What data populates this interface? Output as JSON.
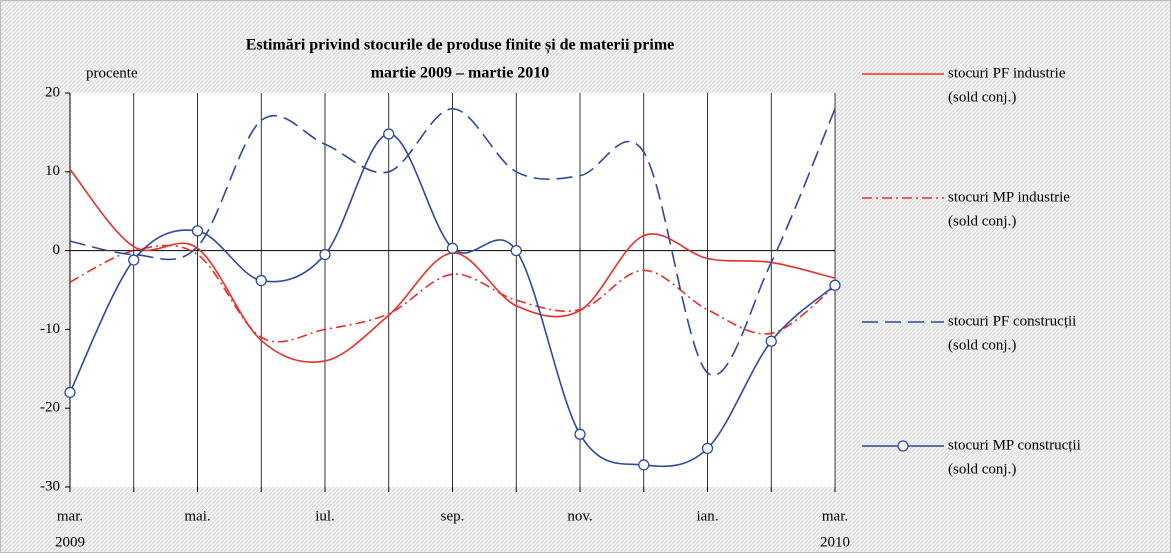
{
  "chart_data": {
    "type": "line",
    "title": "Estimări privind stocurile de produse finite și de materii prime",
    "subtitle": "martie 2009 – martie 2010",
    "y_label": "procente",
    "categories": [
      "mar.",
      null,
      "mai.",
      null,
      "iul.",
      null,
      "sep.",
      null,
      "nov.",
      null,
      "ian.",
      null,
      "mar."
    ],
    "category_years": [
      "2009",
      null,
      null,
      null,
      null,
      null,
      null,
      null,
      null,
      null,
      null,
      null,
      "2010"
    ],
    "legend_note": "(sold conj.)",
    "legend": "right",
    "grid": true,
    "ylim": [
      -30,
      20
    ],
    "yticks": [
      -30,
      -20,
      -10,
      0,
      10,
      20
    ],
    "series": [
      {
        "name": "stocuri PF industrie",
        "color": "#e8312a",
        "dash": "solid",
        "marker": false,
        "values": [
          10.3,
          0.5,
          0.3,
          -11.4,
          -14,
          -8.2,
          -0.3,
          -7,
          -7.6,
          1.9,
          -1,
          -1.5,
          -3.5
        ]
      },
      {
        "name": "stocuri MP industrie",
        "color": "#e8312a",
        "dash": "dashdot",
        "marker": false,
        "values": [
          -4,
          0,
          -0.5,
          -11,
          -10,
          -8,
          -3,
          -6.3,
          -7.5,
          -2.5,
          -7.5,
          -10.5,
          -4.5
        ]
      },
      {
        "name": "stocuri PF construcții",
        "color": "#2e4a9e",
        "dash": "dashed",
        "marker": false,
        "values": [
          1.2,
          -0.5,
          0.5,
          16.5,
          13.5,
          10,
          18,
          10,
          9.5,
          12.5,
          -15.5,
          -1.5,
          18
        ]
      },
      {
        "name": "stocuri MP construcții",
        "color": "#2e4a9e",
        "dash": "solid",
        "marker": true,
        "values": [
          -18,
          -1.2,
          2.5,
          -3.8,
          -0.5,
          14.8,
          0.3,
          0,
          -23.3,
          -27.2,
          -25.1,
          -11.5,
          -4.4
        ]
      }
    ]
  }
}
